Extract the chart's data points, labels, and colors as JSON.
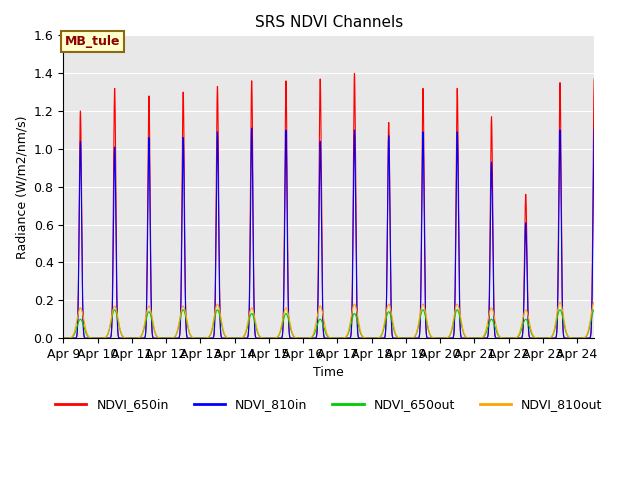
{
  "title": "SRS NDVI Channels",
  "ylabel": "Radiance (W/m2/nm/s)",
  "xlabel": "Time",
  "ylim": [
    0.0,
    1.6
  ],
  "annotation_text": "MB_tule",
  "annotation_color": "#8B0000",
  "annotation_bg": "#FFFFCC",
  "annotation_border": "#8B6914",
  "legend_labels": [
    "NDVI_650in",
    "NDVI_810in",
    "NDVI_650out",
    "NDVI_810out"
  ],
  "line_colors": [
    "#FF0000",
    "#0000FF",
    "#00CC00",
    "#FFA500"
  ],
  "background_color": "#E8E8E8",
  "grid_color": "#FFFFFF",
  "x_tick_labels": [
    "Apr 9",
    "Apr 10",
    "Apr 11",
    "Apr 12",
    "Apr 13",
    "Apr 14",
    "Apr 15",
    "Apr 16",
    "Apr 17",
    "Apr 18",
    "Apr 19",
    "Apr 20",
    "Apr 21",
    "Apr 22",
    "Apr 23",
    "Apr 24"
  ],
  "peak_days": [
    9,
    10,
    11,
    12,
    13,
    14,
    15,
    16,
    17,
    18,
    19,
    20,
    21,
    22,
    23,
    24
  ],
  "peak_650in": [
    1.2,
    1.32,
    1.28,
    1.3,
    1.33,
    1.36,
    1.36,
    1.37,
    1.4,
    1.14,
    1.32,
    1.32,
    1.17,
    0.76,
    1.35,
    1.37
  ],
  "peak_810in": [
    1.04,
    1.01,
    1.06,
    1.06,
    1.09,
    1.11,
    1.1,
    1.04,
    1.1,
    1.07,
    1.09,
    1.09,
    0.93,
    0.61,
    1.1,
    1.11
  ],
  "peak_650out": [
    0.1,
    0.15,
    0.14,
    0.15,
    0.15,
    0.13,
    0.13,
    0.1,
    0.13,
    0.14,
    0.15,
    0.15,
    0.1,
    0.1,
    0.15,
    0.15
  ],
  "peak_810out": [
    0.16,
    0.17,
    0.17,
    0.17,
    0.18,
    0.16,
    0.16,
    0.17,
    0.18,
    0.18,
    0.18,
    0.18,
    0.16,
    0.15,
    0.19,
    0.19
  ],
  "samples_per_day": 500,
  "total_days": 15.5,
  "figsize": [
    6.4,
    4.8
  ],
  "dpi": 100
}
